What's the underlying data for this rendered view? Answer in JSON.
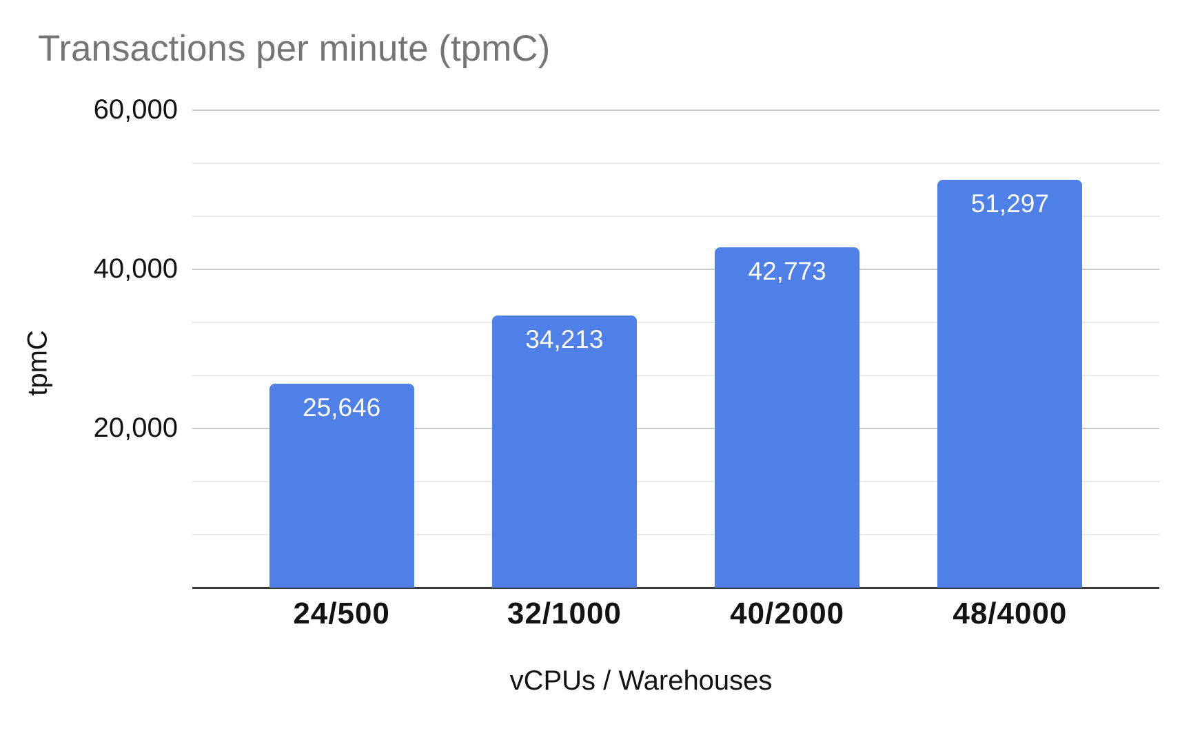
{
  "chart_data": {
    "type": "bar",
    "title": "Transactions per minute (tpmC)",
    "categories": [
      "24/500",
      "32/1000",
      "40/2000",
      "48/4000"
    ],
    "values": [
      25646,
      34213,
      42773,
      51297
    ],
    "value_labels": [
      "25,646",
      "34,213",
      "42,773",
      "51,297"
    ],
    "xlabel": "vCPUs / Warehouses",
    "ylabel": "tpmC",
    "ylim": [
      0,
      60000
    ],
    "y_axis": {
      "tick_values": [
        20000,
        40000,
        60000
      ],
      "tick_labels": [
        "20,000",
        "40,000",
        "60,000"
      ],
      "minor_gridlines_between_majors": 2
    },
    "grid": "on",
    "legend_position": "none",
    "colors": {
      "bar": "#4e80e8",
      "title_text": "#757575",
      "axis_text": "#131313",
      "data_label_text": "#ffffff",
      "major_gridline": "#c9c9c9",
      "minor_gridline": "#e9e9e9",
      "baseline": "#383838",
      "background": "#ffffff"
    }
  }
}
